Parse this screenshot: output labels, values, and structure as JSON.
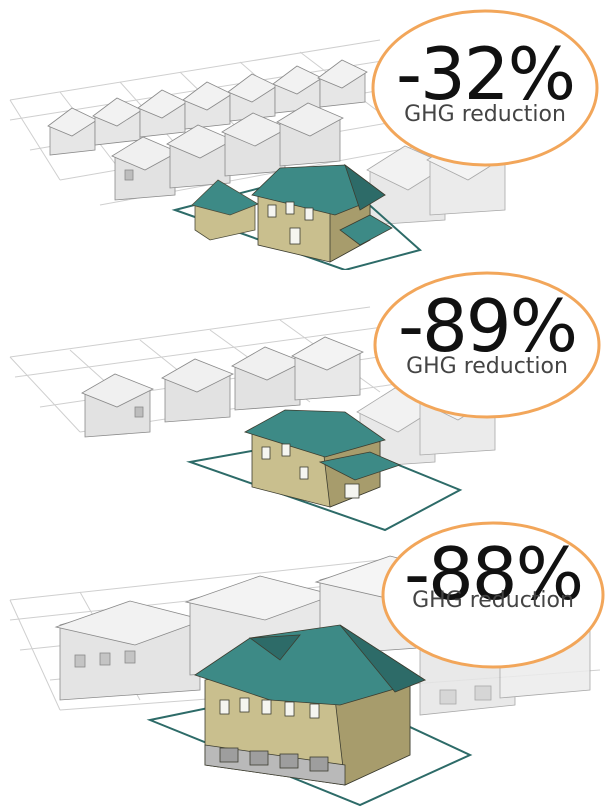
{
  "scenarios": [
    {
      "reduction": "-32%",
      "label": "GHG reduction"
    },
    {
      "reduction": "-89%",
      "label": "GHG reduction"
    },
    {
      "reduction": "-88%",
      "label": "GHG reduction"
    }
  ],
  "colors": {
    "roof_teal": "#3d8a86",
    "roof_teal_dark": "#2d6b68",
    "wall_tan": "#c9bf8e",
    "wall_tan_dark": "#a79c6c",
    "neighbor_light": "#ececec",
    "neighbor_mid": "#d2d2d2",
    "lot_outline": "#2d6b68",
    "badge_border": "#f2a65a"
  }
}
